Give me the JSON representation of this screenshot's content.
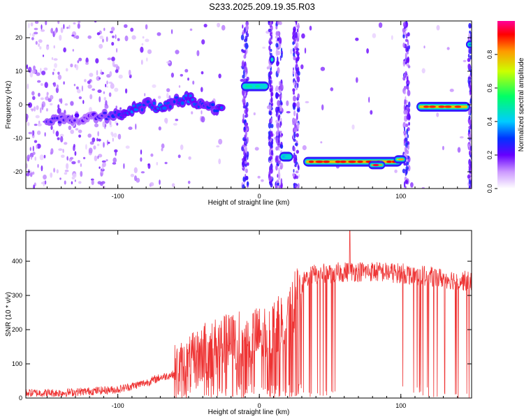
{
  "title": "S233.2025.209.19.35.R03",
  "chart_data": [
    {
      "type": "heatmap",
      "xlabel": "Height of straight line (km)",
      "ylabel": "Frequency (Hz)",
      "xlim": [
        -165,
        150
      ],
      "ylim": [
        -25,
        25
      ],
      "xticks": [
        -100,
        0,
        100
      ],
      "xtick_labels": [
        "-100",
        "0",
        "100"
      ],
      "yticks": [
        -20,
        -10,
        0,
        10,
        20
      ],
      "ytick_labels": [
        "-20",
        "-10",
        "0",
        "10",
        "20"
      ],
      "colorbar": {
        "label": "Normalized spectral amplitude",
        "range": [
          0,
          1
        ],
        "ticks": [
          0.0,
          0.2,
          0.4,
          0.6,
          0.8
        ],
        "tick_labels": [
          "0.0",
          "0.2",
          "0.4",
          "0.6",
          "0.8"
        ]
      },
      "ridge": [
        {
          "x": -150,
          "f": -4.5,
          "a": 0.25
        },
        {
          "x": -120,
          "f": -4,
          "a": 0.2
        },
        {
          "x": -100,
          "f": -3,
          "a": 0.3
        },
        {
          "x": -90,
          "f": -1.5,
          "a": 0.35
        },
        {
          "x": -80,
          "f": 0,
          "a": 0.3
        },
        {
          "x": -70,
          "f": -1,
          "a": 0.35
        },
        {
          "x": -60,
          "f": 1,
          "a": 0.3
        },
        {
          "x": -50,
          "f": 2,
          "a": 0.35
        },
        {
          "x": -40,
          "f": 0,
          "a": 0.3
        },
        {
          "x": -30,
          "f": -1,
          "a": 0.3
        },
        {
          "x": -25,
          "f": -1.5,
          "a": 0.35
        },
        {
          "x": 0,
          "f": 5.5,
          "a": 0.45
        },
        {
          "x": 9,
          "f": 13.5,
          "a": 0.35
        },
        {
          "x": 20,
          "f": -15.5,
          "a": 0.4
        },
        {
          "x": 35,
          "f": -17,
          "a": 0.75
        },
        {
          "x": 60,
          "f": -17,
          "a": 0.9
        },
        {
          "x": 85,
          "f": -18,
          "a": 0.9
        },
        {
          "x": 100,
          "f": -16.5,
          "a": 0.8
        },
        {
          "x": 115,
          "f": -0.5,
          "a": 0.6
        },
        {
          "x": 125,
          "f": -0.5,
          "a": 0.9
        },
        {
          "x": 145,
          "f": -0.5,
          "a": 0.6
        },
        {
          "x": 149,
          "f": 18,
          "a": 0.4
        }
      ]
    },
    {
      "type": "line",
      "xlabel": "Height of straight line (km)",
      "ylabel": "SNR (10 * v/v)",
      "xlim": [
        -165,
        150
      ],
      "ylim": [
        0,
        490
      ],
      "xticks": [
        -100,
        0,
        100
      ],
      "xtick_labels": [
        "-100",
        "0",
        "100"
      ],
      "yticks": [
        0,
        100,
        200,
        300,
        400
      ],
      "ytick_labels": [
        "0",
        "100",
        "200",
        "300",
        "400"
      ],
      "color": "#ee3333",
      "envelope": {
        "x": [
          -165,
          -140,
          -120,
          -100,
          -90,
          -80,
          -70,
          -60,
          -50,
          -40,
          -30,
          -20,
          -10,
          0,
          10,
          20,
          30,
          35,
          50,
          65,
          80,
          100,
          110,
          120,
          130,
          150
        ],
        "y": [
          15,
          15,
          20,
          25,
          35,
          45,
          60,
          70,
          90,
          130,
          150,
          160,
          175,
          180,
          200,
          230,
          330,
          360,
          365,
          370,
          370,
          365,
          360,
          355,
          350,
          340
        ]
      },
      "peak": {
        "x": 64,
        "y": 490
      }
    }
  ]
}
